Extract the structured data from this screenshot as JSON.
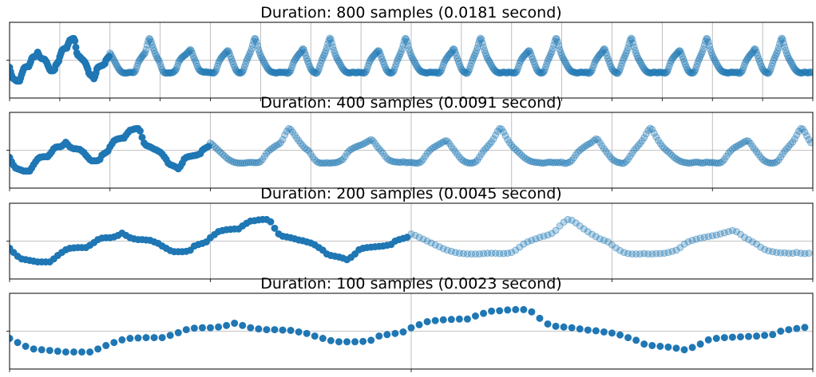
{
  "signal": [
    -19,
    -30,
    -40,
    -47,
    -49,
    -51,
    -53,
    -55,
    -55,
    -55,
    -55,
    -47,
    -38,
    -30,
    -23,
    -19,
    -18,
    -17,
    -17,
    -17,
    -11,
    -4,
    4,
    8,
    9,
    9,
    11,
    15,
    21,
    15,
    9,
    6,
    4,
    4,
    3,
    2,
    -2,
    -6,
    -13,
    -19,
    -25,
    -28,
    -28,
    -28,
    -27,
    -24,
    -13,
    -9,
    -6,
    -2,
    9,
    17,
    25,
    28,
    30,
    31,
    32,
    32,
    40,
    47,
    53,
    54,
    56,
    57,
    57,
    51,
    34,
    19,
    13,
    11,
    9,
    6,
    3,
    1,
    -2,
    -5,
    -10,
    -17,
    -24,
    -34,
    -38,
    -40,
    -42,
    -45,
    -49,
    -43,
    -34,
    -23,
    -19,
    -17,
    -16,
    -15,
    -14,
    -13,
    -11,
    -9,
    0,
    4,
    7,
    10,
    19,
    15,
    10,
    5,
    0,
    -5,
    -10,
    -15,
    -20,
    -24,
    -27,
    -30,
    -32,
    -33,
    -34,
    -34,
    -34,
    -34,
    -33,
    -32,
    -32,
    -32,
    -33,
    -33,
    -32,
    -30,
    -24,
    -16,
    -8,
    -2,
    2,
    6,
    10,
    13,
    16,
    20,
    28,
    40,
    50,
    57,
    55,
    48,
    40,
    32,
    25,
    18,
    12,
    6,
    2,
    -2,
    -10,
    -18,
    -25,
    -30,
    -33,
    -34,
    -34,
    -34,
    -33,
    -34,
    -34,
    -33,
    -33,
    -32,
    -30,
    -27,
    -24,
    -17,
    -8,
    -2,
    2,
    5,
    8,
    10,
    12,
    14,
    16,
    19,
    22,
    25,
    28,
    25,
    18,
    10,
    4,
    -2,
    -8,
    -16,
    -22,
    -26,
    -28,
    -30,
    -31,
    -31,
    -32,
    -32,
    -30,
    -32,
    -33,
    -32,
    -32,
    -33,
    -34,
    -34,
    -33,
    -30,
    -24,
    -16,
    -8,
    -2,
    3,
    7,
    10,
    13,
    16,
    19,
    22,
    25,
    24,
    18,
    10,
    3,
    -4,
    -11,
    -18,
    -24,
    -28,
    -31,
    -33,
    -34,
    -34,
    -33,
    -31,
    -26,
    -18,
    -10,
    -2,
    4,
    10,
    16,
    22,
    30,
    40,
    50,
    57,
    56,
    48,
    38,
    28,
    20,
    13,
    7,
    2,
    -3,
    -8,
    -13,
    -18,
    -22,
    -25,
    -28,
    -30,
    -31,
    -32,
    -32,
    -33,
    -34,
    -34,
    -33,
    -32,
    -31,
    -32,
    -33,
    -32,
    -32,
    -33,
    -31,
    -34,
    -35,
    -33,
    -31,
    -27,
    -20,
    -12,
    -5,
    0,
    4,
    8,
    12,
    15,
    18,
    21,
    26,
    30,
    28,
    20,
    12,
    4,
    -3,
    -10,
    -17,
    -23,
    -27,
    -30,
    -32,
    -33,
    -35,
    -34,
    -30,
    -24,
    -16,
    -8,
    0,
    6,
    12,
    18,
    25,
    33,
    43,
    52,
    58,
    55,
    45,
    35,
    26,
    18,
    11,
    5,
    0,
    -4,
    -9,
    -14,
    -19,
    -23,
    -26,
    -29,
    -31,
    -32,
    -33,
    -34,
    -34,
    -33,
    -32,
    -31,
    -32,
    -33,
    -34,
    -33,
    -31,
    -32,
    -33,
    -32,
    -33,
    -34,
    -34,
    -33,
    -30,
    -24,
    -16,
    -8,
    -2,
    3,
    7,
    10,
    13,
    16,
    19,
    22,
    25,
    24,
    18,
    10,
    3,
    -4,
    -11,
    -18,
    -24,
    -28,
    -31,
    -33,
    -34,
    -34,
    -33,
    -31,
    -26,
    -18,
    -10,
    -2,
    4,
    10,
    16,
    22,
    30,
    40,
    50,
    57,
    56,
    48,
    38,
    28,
    20,
    13,
    7,
    2,
    -3,
    -8,
    -13,
    -18,
    -22,
    -25,
    -28,
    -30,
    -31,
    -32,
    -32,
    -33,
    -34,
    -34,
    -33,
    -32,
    -31,
    -32,
    -33,
    -32,
    -32,
    -33,
    -31,
    -34,
    -35,
    -33,
    -31,
    -27,
    -20,
    -12,
    -5,
    0,
    4,
    8,
    12,
    15,
    18,
    21,
    26,
    30,
    28,
    20,
    12,
    4,
    -3,
    -10,
    -17,
    -23,
    -27,
    -30,
    -32,
    -33,
    -35,
    -34,
    -30,
    -24,
    -16,
    -8,
    0,
    6,
    12,
    18,
    25,
    33,
    43,
    52,
    58,
    55,
    45,
    35,
    26,
    18,
    11,
    5,
    0,
    -4,
    -9,
    -14,
    -19,
    -23,
    -26,
    -29,
    -31,
    -32,
    -33,
    -34,
    -34,
    -33,
    -32,
    -31,
    -32,
    -33,
    -34,
    -33,
    -31,
    -32,
    -33,
    -32,
    -33,
    -34,
    -34,
    -33,
    -30,
    -24,
    -16,
    -8,
    -2,
    3,
    7,
    10,
    13,
    16,
    19,
    22,
    25,
    24,
    18,
    10,
    3,
    -4,
    -11,
    -18,
    -24,
    -28,
    -31,
    -33,
    -34,
    -34,
    -33,
    -31,
    -26,
    -18,
    -10,
    -2,
    4,
    10,
    16,
    22,
    30,
    40,
    50,
    57,
    56,
    48,
    38,
    28,
    20,
    13,
    7,
    2,
    -3,
    -8,
    -13,
    -18,
    -22,
    -25,
    -28,
    -30,
    -31,
    -32,
    -32,
    -33,
    -34,
    -34,
    -33,
    -32,
    -31,
    -32,
    -33,
    -32,
    -32,
    -33,
    -31,
    -34,
    -35,
    -33,
    -31,
    -27,
    -20,
    -12,
    -5,
    0,
    4,
    8,
    12,
    15,
    18,
    21,
    26,
    30,
    28,
    20,
    12,
    4,
    -3,
    -10,
    -17,
    -23,
    -27,
    -30,
    -32,
    -33,
    -35,
    -34,
    -30,
    -24,
    -16,
    -8,
    0,
    6,
    12,
    18,
    25,
    33,
    43,
    52,
    58,
    55,
    45,
    35,
    26,
    18,
    11,
    5,
    0,
    -4,
    -9,
    -14,
    -19,
    -23,
    -26,
    -29,
    -31,
    -32,
    -33,
    -34,
    -34,
    -33,
    -32,
    -31,
    -32,
    -33,
    -34,
    -33,
    -31,
    -32,
    -33,
    -32,
    -33,
    -34,
    -34,
    -33,
    -30,
    -24,
    -16,
    -8,
    -2,
    3,
    7,
    10,
    13,
    16,
    19,
    22,
    25,
    24,
    18,
    10,
    3,
    -4,
    -11,
    -18,
    -24,
    -28,
    -31,
    -33,
    -34,
    -34,
    -33,
    -31,
    -26,
    -18,
    -10,
    -2,
    4,
    10,
    16,
    22,
    30,
    40,
    50,
    57,
    56,
    48,
    38,
    28,
    20,
    13,
    7,
    2,
    -3,
    -8,
    -13,
    -18,
    -22,
    -25,
    -28,
    -30,
    -31,
    -32,
    -32,
    -33,
    -34,
    -34,
    -33,
    -32,
    -31,
    -32,
    -33,
    -32,
    -32,
    -33,
    -31,
    -34,
    -35,
    -33,
    -31,
    -27,
    -20,
    -12,
    -5,
    0,
    4,
    8,
    12,
    15,
    18,
    21,
    26,
    30,
    28,
    20,
    12,
    4,
    -3,
    -10,
    -17,
    -23,
    -27,
    -30,
    -32,
    -33,
    -35,
    -34,
    -30,
    -24,
    -16,
    -8,
    0,
    6,
    12,
    18,
    25,
    33,
    43,
    52,
    58,
    55,
    45,
    35,
    26,
    18,
    11,
    5,
    0,
    -4,
    -9,
    -14,
    -19,
    -23,
    -26,
    -29,
    -31,
    -32,
    -33,
    -34,
    -34,
    -33,
    -32,
    -31,
    -32,
    -33,
    -34,
    -33,
    -31,
    -32,
    -33
  ],
  "chart_data": [
    {
      "type": "scatter",
      "title": "Duration: 800 samples (0.0181 second)",
      "xlim": [
        0,
        800
      ],
      "xticks": [
        0,
        50,
        100,
        150,
        200,
        250,
        300,
        350,
        400,
        450,
        500,
        550,
        600,
        650,
        700,
        750,
        800
      ],
      "ylim": [
        -100,
        100
      ],
      "yticks": [
        0
      ],
      "grid": true,
      "color": "#1f77b4",
      "highlight": 100,
      "faded_opacity": 0.3
    },
    {
      "type": "scatter",
      "title": "Duration: 400 samples (0.0091 second)",
      "xlim": [
        0,
        400
      ],
      "xticks": [
        0,
        50,
        100,
        150,
        200,
        250,
        300,
        350,
        400
      ],
      "ylim": [
        -100,
        100
      ],
      "yticks": [
        0
      ],
      "grid": true,
      "color": "#1f77b4",
      "highlight": 100,
      "faded_opacity": 0.3
    },
    {
      "type": "scatter",
      "title": "Duration: 200 samples (0.0045 second)",
      "xlim": [
        0,
        200
      ],
      "xticks": [
        0,
        50,
        100,
        150,
        200
      ],
      "ylim": [
        -100,
        100
      ],
      "yticks": [
        0
      ],
      "grid": true,
      "color": "#1f77b4",
      "highlight": 100,
      "faded_opacity": 0.3
    },
    {
      "type": "scatter",
      "title": "Duration: 100 samples (0.0023 second)",
      "xlim": [
        0,
        100
      ],
      "xticks": [
        0,
        50,
        100
      ],
      "ylim": [
        -100,
        100
      ],
      "yticks": [
        0
      ],
      "grid": true,
      "color": "#1f77b4",
      "highlight": 100,
      "faded_opacity": 0.3
    }
  ]
}
